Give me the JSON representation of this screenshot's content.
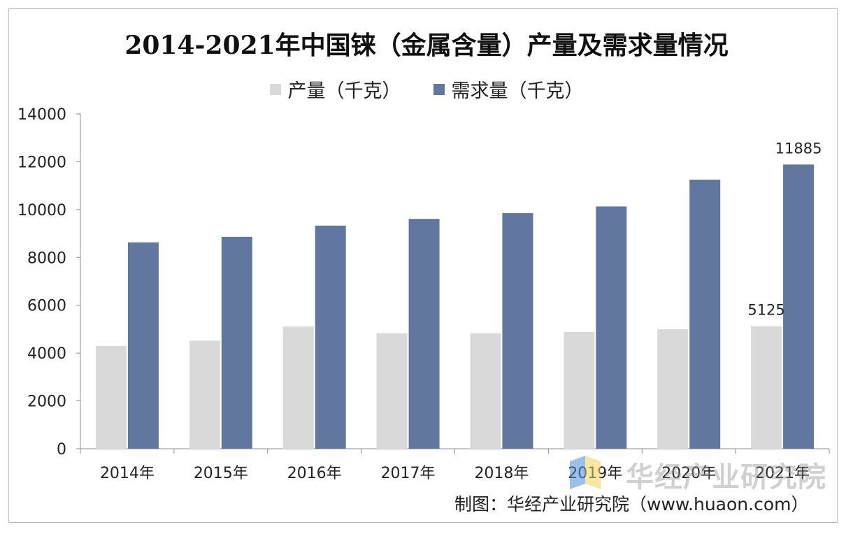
{
  "chart_data": {
    "type": "bar",
    "title": "2014-2021年中国铼（金属含量）产量及需求量情况",
    "categories": [
      "2014年",
      "2015年",
      "2016年",
      "2017年",
      "2018年",
      "2019年",
      "2020年",
      "2021年"
    ],
    "series": [
      {
        "name": "产量（千克）",
        "color": "#d9d9d9",
        "values": [
          4300,
          4520,
          5110,
          4830,
          4830,
          4880,
          5000,
          5125
        ]
      },
      {
        "name": "需求量（千克）",
        "color": "#61779f",
        "values": [
          8630,
          8860,
          9330,
          9610,
          9850,
          10130,
          11250,
          11885
        ]
      }
    ],
    "data_labels": [
      {
        "series": 0,
        "index": 7,
        "text": "5125"
      },
      {
        "series": 1,
        "index": 7,
        "text": "11885"
      }
    ],
    "ylim": [
      0,
      14000
    ],
    "yticks": [
      "0",
      "2000",
      "4000",
      "6000",
      "8000",
      "10000",
      "12000",
      "14000"
    ],
    "xlabel": "",
    "ylabel": "",
    "legend_position": "top-center",
    "grid": false
  },
  "watermark": {
    "text": "华经产业研究院"
  },
  "source": {
    "text": "制图：华经产业研究院（www.huaon.com）"
  }
}
